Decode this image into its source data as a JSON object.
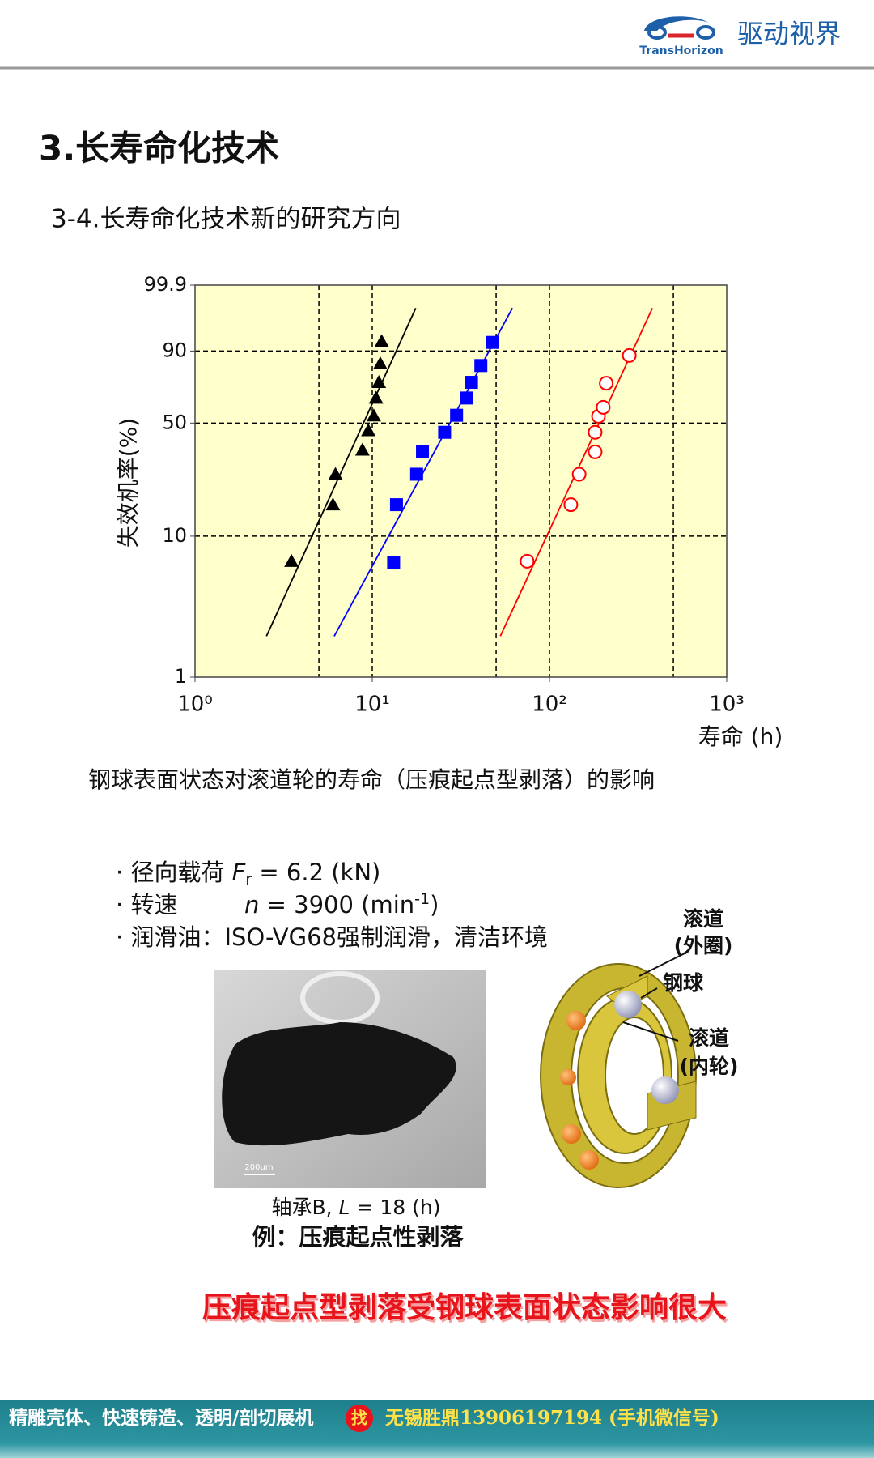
{
  "header": {
    "brand_en": "TransHorizon",
    "brand_cn": "驱动视界"
  },
  "title": "3.长寿命化技术",
  "subtitle": "3-4.长寿命化技术新的研究方向",
  "chart_data": {
    "type": "scatter",
    "xlabel": "寿命 (h)",
    "ylabel": "失效机率(%)",
    "caption": "钢球表面状态对滚道轮的寿命（压痕起点型剥落）的影响",
    "xscale": "log",
    "yscale": "weibull",
    "xlim": [
      1,
      1000
    ],
    "ylim": [
      1,
      99.9
    ],
    "xticks": [
      {
        "value": 1,
        "label": "10⁰"
      },
      {
        "value": 10,
        "label": "10¹"
      },
      {
        "value": 100,
        "label": "10²"
      },
      {
        "value": 1000,
        "label": "10³"
      }
    ],
    "yticks": [
      1,
      10,
      50,
      90,
      99.9
    ],
    "xgrid": [
      5,
      10,
      50,
      100,
      500
    ],
    "ygrid": [
      10,
      50,
      90
    ],
    "background": "#ffffcc",
    "series": [
      {
        "color": "#000000",
        "marker": "triangle",
        "x": [
          3.5,
          6.0,
          6.2,
          8.8,
          9.5,
          10.2,
          10.5,
          10.9,
          11.1,
          11.3
        ],
        "values": [
          6.7,
          16.3,
          25.6,
          35.8,
          45.8,
          54.3,
          65.1,
          74.5,
          84.5,
          93.3
        ],
        "fit": {
          "x": [
            2.53,
            17.6
          ],
          "y": [
            1.97,
            99.1
          ]
        }
      },
      {
        "color": "#0000ff",
        "marker": "square",
        "x": [
          13.2,
          13.7,
          17.8,
          19.2,
          25.6,
          29.9,
          34.2,
          36.3,
          41.0,
          47.4
        ],
        "values": [
          6.6,
          16.3,
          25.6,
          34.9,
          44.8,
          54.6,
          65.1,
          74.5,
          83.6,
          93.0
        ],
        "fit": {
          "x": [
            6.1,
            61.8
          ],
          "y": [
            1.97,
            99.1
          ]
        }
      },
      {
        "color": "#ff0000",
        "marker": "circle",
        "x": [
          74.8,
          132,
          147,
          181,
          181,
          189,
          201,
          209,
          282
        ],
        "values": [
          6.7,
          16.3,
          25.6,
          34.9,
          44.8,
          54.0,
          59.4,
          74.0,
          88.2
        ],
        "fit": {
          "x": [
            52.8,
            381
          ],
          "y": [
            1.97,
            99.1
          ]
        }
      }
    ]
  },
  "conditions": [
    {
      "label": "径向载荷",
      "symbol": "F",
      "subscript": "r",
      "value": " = 6.2 (kN)"
    },
    {
      "label": "转速",
      "symbol": "n",
      "value": " = 3900 (min",
      "superscript": "-1",
      "suffix": ")"
    },
    {
      "label": "润滑油：ISO-VG68强制润滑，清洁环境"
    }
  ],
  "photo": {
    "scale_bar": "200um",
    "caption_prefix": "轴承B, ",
    "caption_symbol": "L",
    "caption_value": " = 18 (h)",
    "example": "例：压痕起点性剥落"
  },
  "diagram": {
    "outer_race": [
      "滚道",
      "(外圈)"
    ],
    "ball": "钢球",
    "inner_race": [
      "滚道",
      "(内轮)"
    ]
  },
  "conclusion": "压痕起点型剥落受钢球表面状态影响很大",
  "footer": {
    "left": "精雕壳体、快速铸造、透明/剖切展机",
    "badge": "找",
    "right": "无锡胜鼎13906197194 (手机微信号)"
  }
}
